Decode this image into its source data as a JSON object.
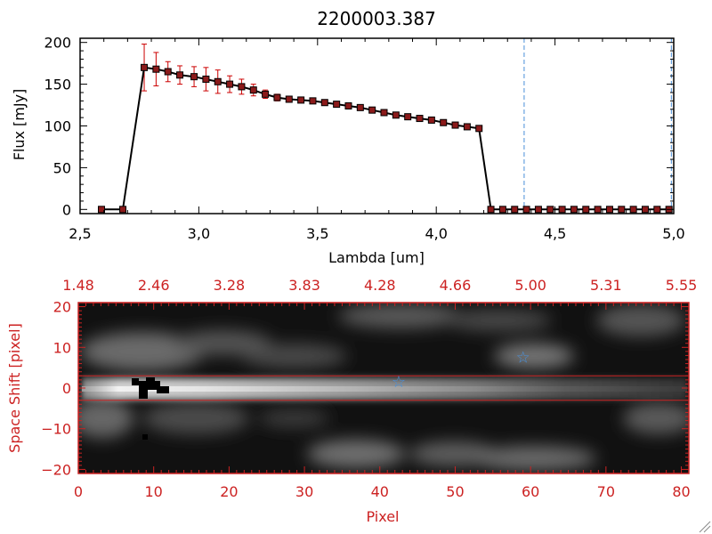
{
  "chart_data": [
    {
      "type": "line",
      "title": "2200003.387",
      "xlabel": "Lambda [um]",
      "ylabel": "Flux [mJy]",
      "xlim": [
        2.5,
        5.0
      ],
      "ylim": [
        -5,
        205
      ],
      "xticks": [
        2.5,
        3.0,
        3.5,
        4.0,
        4.5,
        5.0
      ],
      "xtick_labels": [
        "2,5",
        "3,0",
        "3,5",
        "4,0",
        "4,5",
        "5,0"
      ],
      "yticks": [
        0,
        50,
        100,
        150,
        200
      ],
      "ytick_labels": [
        "0",
        "50",
        "100",
        "150",
        "200"
      ],
      "colors": {
        "line": "#000000",
        "marker": "#8b1a1a",
        "errorbar": "#cc0000",
        "vline": "#4a90d9",
        "zero_line": "#cc0000"
      },
      "vlines": [
        4.37,
        4.99
      ],
      "series": [
        {
          "name": "flux",
          "x": [
            2.59,
            2.68,
            2.77,
            2.82,
            2.87,
            2.92,
            2.98,
            3.03,
            3.08,
            3.13,
            3.18,
            3.23,
            3.28,
            3.33,
            3.38,
            3.43,
            3.48,
            3.53,
            3.58,
            3.63,
            3.68,
            3.73,
            3.78,
            3.83,
            3.88,
            3.93,
            3.98,
            4.03,
            4.08,
            4.13,
            4.18,
            4.23,
            4.28,
            4.33,
            4.38,
            4.43,
            4.48,
            4.53,
            4.58,
            4.63,
            4.68,
            4.73,
            4.78,
            4.83,
            4.88,
            4.93,
            4.98
          ],
          "y": [
            0,
            0,
            170,
            168,
            165,
            161,
            159,
            156,
            153,
            150,
            147,
            143,
            138,
            134,
            132,
            131,
            130,
            128,
            126,
            124,
            122,
            119,
            116,
            113,
            111,
            109,
            107,
            104,
            101,
            99,
            97,
            0,
            0,
            0,
            0,
            0,
            0,
            0,
            0,
            0,
            0,
            0,
            0,
            0,
            0,
            0,
            0
          ],
          "err": [
            0,
            0,
            28,
            20,
            12,
            11,
            12,
            14,
            14,
            10,
            9,
            7,
            5,
            4,
            3,
            3,
            2,
            2,
            2,
            2,
            2,
            2,
            2,
            2,
            2,
            2,
            2,
            2,
            2,
            2,
            2,
            0,
            0,
            0,
            0,
            0,
            0,
            0,
            0,
            0,
            0,
            0,
            0,
            0,
            0,
            0,
            0
          ]
        }
      ]
    },
    {
      "type": "heatmap",
      "xlabel": "Pixel",
      "ylabel": "Space Shift [pixel]",
      "xlim": [
        0,
        81
      ],
      "ylim": [
        -21,
        21
      ],
      "xticks": [
        0,
        10,
        20,
        30,
        40,
        50,
        60,
        70,
        80
      ],
      "xtick_labels": [
        "0",
        "10",
        "20",
        "30",
        "40",
        "50",
        "60",
        "70",
        "80"
      ],
      "yticks": [
        -20,
        -10,
        0,
        10,
        20
      ],
      "ytick_labels": [
        "−20",
        "−10",
        "0",
        "10",
        "20"
      ],
      "top_axis_ticks": [
        0,
        10,
        20,
        30,
        40,
        50,
        60,
        70,
        80
      ],
      "top_axis_labels": [
        "1.48",
        "2.46",
        "3.28",
        "3.83",
        "4.28",
        "4.66",
        "5.00",
        "5.31",
        "5.55"
      ],
      "hlines": [
        3,
        -3
      ],
      "markers": [
        {
          "label": "star",
          "x": 42.5,
          "y": 1.5
        },
        {
          "label": "star",
          "x": 59,
          "y": 7.5
        }
      ],
      "colors": {
        "frame": "#cc2222",
        "hline": "#cc2222",
        "star": "#4a90d9"
      }
    }
  ]
}
